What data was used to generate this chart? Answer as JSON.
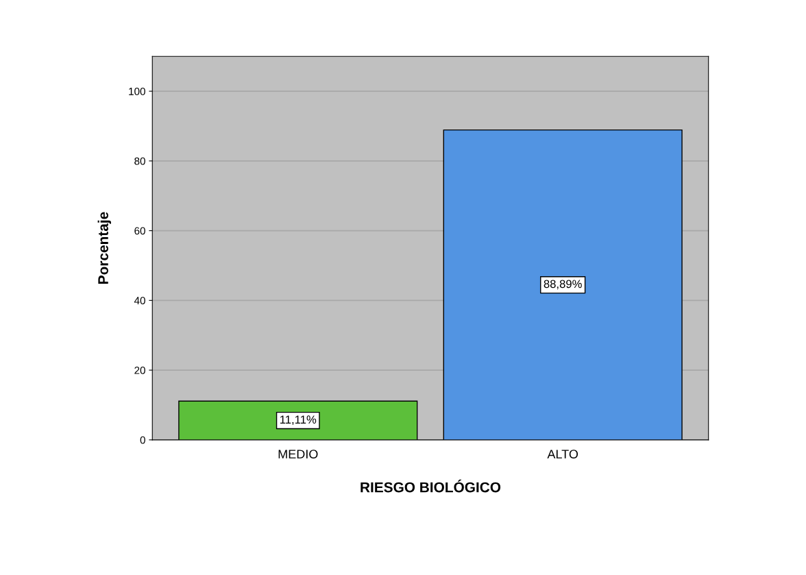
{
  "chart_data": {
    "type": "bar",
    "xlabel": "RIESGO BIOLÓGICO",
    "ylabel": "Porcentaje",
    "categories": [
      "MEDIO",
      "ALTO"
    ],
    "values": [
      11.11,
      88.89
    ],
    "colors": [
      "#5cbf3a",
      "#5294e2"
    ],
    "value_labels": [
      "11,11%",
      "88,89%"
    ],
    "ylim": [
      0,
      110
    ],
    "yticks": [
      0,
      20,
      40,
      60,
      80,
      100
    ],
    "grid": "y"
  }
}
